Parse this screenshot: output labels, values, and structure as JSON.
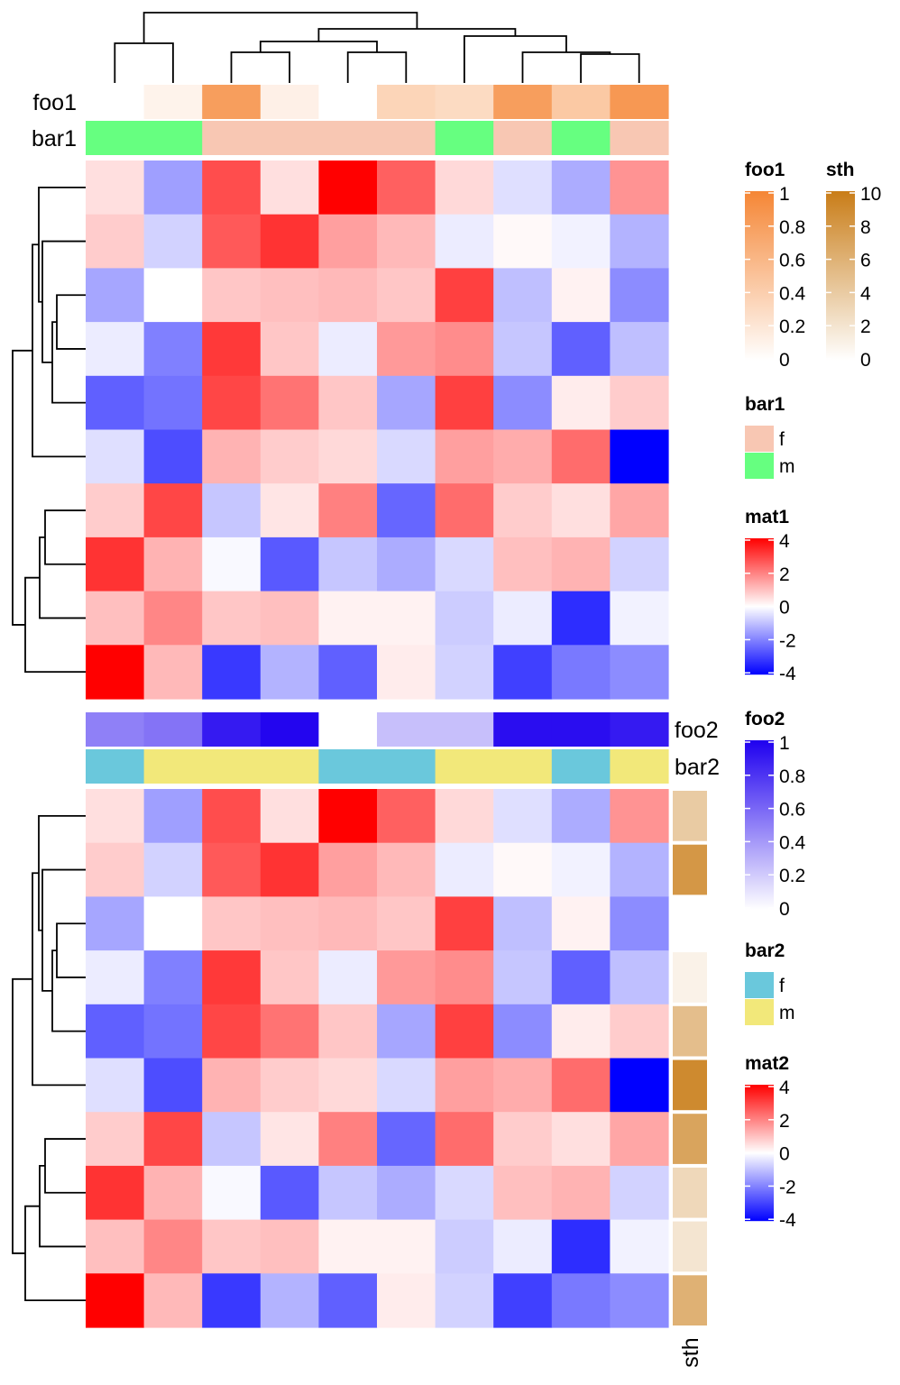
{
  "chart_data": {
    "type": "heatmap",
    "rows": 10,
    "cols": 10,
    "heatmaps": [
      {
        "name": "mat1",
        "top_annotations": [
          {
            "name": "foo1",
            "values": [
              0,
              0.1,
              0.8,
              0.12,
              0,
              0.35,
              0.3,
              0.8,
              0.45,
              0.85
            ]
          },
          {
            "name": "bar1",
            "values": [
              "m",
              "m",
              "f",
              "f",
              "f",
              "f",
              "m",
              "f",
              "m",
              "f"
            ]
          }
        ],
        "matrix": [
          [
            0.5,
            -1.5,
            2.8,
            0.5,
            4,
            2.5,
            0.6,
            -0.5,
            -1.3,
            1.7
          ],
          [
            0.8,
            -0.7,
            2.6,
            3.2,
            1.5,
            1.1,
            -0.3,
            0.1,
            -0.2,
            -1.2
          ],
          [
            -1.4,
            0,
            0.9,
            1.0,
            1.1,
            0.9,
            3.0,
            -1.0,
            0.2,
            -1.8
          ],
          [
            -0.3,
            -2.0,
            3.1,
            0.9,
            -0.3,
            1.6,
            1.8,
            -0.9,
            -2.5,
            -1.0
          ],
          [
            -2.5,
            -2.2,
            2.9,
            2.2,
            0.9,
            -1.4,
            3.0,
            -1.8,
            0.3,
            0.8
          ],
          [
            -0.5,
            -2.8,
            1.2,
            0.8,
            0.6,
            -0.6,
            1.5,
            1.3,
            2.3,
            -4
          ],
          [
            0.8,
            2.9,
            -0.9,
            0.4,
            2.0,
            -2.4,
            2.3,
            0.8,
            0.5,
            1.4
          ],
          [
            3.2,
            1.2,
            -0.1,
            -2.6,
            -0.9,
            -1.3,
            -0.6,
            1.0,
            1.2,
            -0.7
          ],
          [
            1.0,
            1.9,
            0.9,
            1.0,
            0.2,
            0.2,
            -0.8,
            -0.3,
            -3.3,
            -0.2
          ],
          [
            4,
            1.1,
            -3.1,
            -1.2,
            -2.5,
            0.3,
            -0.7,
            -3.0,
            -2.1,
            -1.8
          ]
        ]
      },
      {
        "name": "mat2",
        "top_annotations": [
          {
            "name": "foo2",
            "values": [
              0.5,
              0.55,
              0.9,
              0.98,
              0,
              0.25,
              0.25,
              0.95,
              0.95,
              0.9
            ]
          },
          {
            "name": "bar2",
            "values": [
              "f",
              "m",
              "m",
              "m",
              "f",
              "f",
              "m",
              "m",
              "f",
              "m"
            ]
          }
        ],
        "right_annotations": [
          {
            "name": "sth",
            "values": [
              4,
              8,
              0,
              1,
              5,
              9,
              7,
              3,
              2,
              6
            ]
          }
        ],
        "matrix": [
          [
            0.5,
            -1.5,
            2.8,
            0.5,
            4,
            2.5,
            0.6,
            -0.5,
            -1.3,
            1.7
          ],
          [
            0.8,
            -0.7,
            2.6,
            3.2,
            1.5,
            1.1,
            -0.3,
            0.1,
            -0.2,
            -1.2
          ],
          [
            -1.4,
            0,
            0.9,
            1.0,
            1.1,
            0.9,
            3.0,
            -1.0,
            0.2,
            -1.8
          ],
          [
            -0.3,
            -2.0,
            3.1,
            0.9,
            -0.3,
            1.6,
            1.8,
            -0.9,
            -2.5,
            -1.0
          ],
          [
            -2.5,
            -2.2,
            2.9,
            2.2,
            0.9,
            -1.4,
            3.0,
            -1.8,
            0.3,
            0.8
          ],
          [
            -0.5,
            -2.8,
            1.2,
            0.8,
            0.6,
            -0.6,
            1.5,
            1.3,
            2.3,
            -4
          ],
          [
            0.8,
            2.9,
            -0.9,
            0.4,
            2.0,
            -2.4,
            2.3,
            0.8,
            0.5,
            1.4
          ],
          [
            3.2,
            1.2,
            -0.1,
            -2.6,
            -0.9,
            -1.3,
            -0.6,
            1.0,
            1.2,
            -0.7
          ],
          [
            1.0,
            1.9,
            0.9,
            1.0,
            0.2,
            0.2,
            -0.8,
            -0.3,
            -3.3,
            -0.2
          ],
          [
            4,
            1.1,
            -3.1,
            -1.2,
            -2.5,
            0.3,
            -0.7,
            -3.0,
            -2.1,
            -1.8
          ]
        ]
      }
    ],
    "legends": [
      {
        "title": "foo1",
        "type": "continuous",
        "ticks": [
          "1",
          "0.8",
          "0.6",
          "0.4",
          "0.2",
          "0"
        ],
        "range": [
          0,
          1
        ],
        "colors": [
          "#ffffff",
          "#f58635"
        ]
      },
      {
        "title": "sth",
        "type": "continuous",
        "ticks": [
          "10",
          "8",
          "6",
          "4",
          "2",
          "0"
        ],
        "range": [
          0,
          10
        ],
        "colors": [
          "#ffffff",
          "#c97d18"
        ]
      },
      {
        "title": "bar1",
        "type": "discrete",
        "levels": [
          {
            "label": "f",
            "color": "#f8c7b3"
          },
          {
            "label": "m",
            "color": "#66ff80"
          }
        ]
      },
      {
        "title": "mat1",
        "type": "continuous",
        "ticks": [
          "4",
          "2",
          "0",
          "-2",
          "-4"
        ],
        "range": [
          -4,
          4
        ],
        "colors": [
          "#0000ff",
          "#ffffff",
          "#ff0000"
        ]
      },
      {
        "title": "foo2",
        "type": "continuous",
        "ticks": [
          "1",
          "0.8",
          "0.6",
          "0.4",
          "0.2",
          "0"
        ],
        "range": [
          0,
          1
        ],
        "colors": [
          "#ffffff",
          "#1f00ef"
        ]
      },
      {
        "title": "bar2",
        "type": "discrete",
        "levels": [
          {
            "label": "f",
            "color": "#6ac8dc"
          },
          {
            "label": "m",
            "color": "#f2e87a"
          }
        ]
      },
      {
        "title": "mat2",
        "type": "continuous",
        "ticks": [
          "4",
          "2",
          "0",
          "-2",
          "-4"
        ],
        "range": [
          -4,
          4
        ],
        "colors": [
          "#0000ff",
          "#ffffff",
          "#ff0000"
        ]
      }
    ]
  }
}
